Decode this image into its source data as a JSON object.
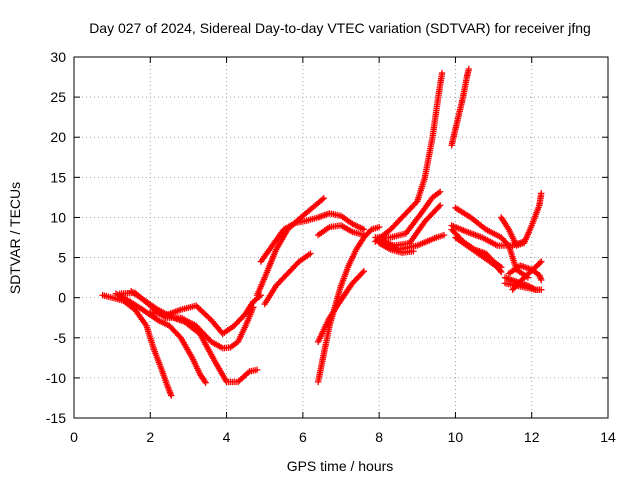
{
  "chart_data": {
    "type": "scatter",
    "title": "Day 027 of 2024, Sidereal Day-to-day VTEC variation (SDTVAR) for receiver jfng",
    "xlabel": "GPS time / hours",
    "ylabel": "SDTVAR / TECUs",
    "xlim": [
      0,
      14
    ],
    "ylim": [
      -15,
      30
    ],
    "x_ticks": [
      "0",
      "2",
      "4",
      "6",
      "8",
      "10",
      "12",
      "14"
    ],
    "y_ticks": [
      "-15",
      "-10",
      "-5",
      "0",
      "5",
      "10",
      "15",
      "20",
      "25",
      "30"
    ],
    "grid": true,
    "marker": "plus",
    "marker_color": "#ff0000",
    "series": [
      {
        "x": [
          0.75,
          1.0,
          1.3,
          1.6,
          1.9,
          2.1,
          2.3,
          2.45,
          2.55
        ],
        "y": [
          0.3,
          0.0,
          -0.4,
          -1.5,
          -3.5,
          -6.5,
          -9.0,
          -11.0,
          -12.2
        ]
      },
      {
        "x": [
          1.1,
          1.4,
          1.8,
          2.2,
          2.5,
          2.8,
          3.1,
          3.3,
          3.45
        ],
        "y": [
          0.5,
          -0.3,
          -1.5,
          -2.8,
          -3.5,
          -5.0,
          -7.5,
          -9.5,
          -10.6
        ]
      },
      {
        "x": [
          1.5,
          1.8,
          2.2,
          2.6,
          2.9,
          3.3,
          3.7,
          4.0,
          4.3,
          4.6,
          4.8
        ],
        "y": [
          0.8,
          -0.2,
          -1.5,
          -2.5,
          -3.0,
          -4.5,
          -8.0,
          -10.5,
          -10.5,
          -9.2,
          -9.0
        ]
      },
      {
        "x": [
          1.2,
          1.6,
          2.0,
          2.4,
          2.8,
          3.2,
          3.6,
          3.9,
          4.1,
          4.3,
          4.5,
          4.7
        ],
        "y": [
          0.5,
          0.6,
          -1.0,
          -2.5,
          -2.5,
          -3.5,
          -5.5,
          -6.3,
          -6.2,
          -5.5,
          -3.5,
          -1.2
        ]
      },
      {
        "x": [
          2.0,
          2.4,
          2.8,
          3.2,
          3.6,
          3.9,
          4.2,
          4.5,
          4.7,
          4.9
        ],
        "y": [
          -1.8,
          -2.2,
          -1.5,
          -1.0,
          -2.8,
          -4.5,
          -3.5,
          -2.0,
          -0.5,
          0.3
        ]
      },
      {
        "x": [
          4.8,
          5.0,
          5.3,
          5.6,
          5.9,
          6.2,
          6.4,
          6.55
        ],
        "y": [
          0.3,
          2.5,
          6.0,
          8.5,
          9.8,
          11.0,
          11.8,
          12.4
        ]
      },
      {
        "x": [
          4.9,
          5.2,
          5.5,
          5.8,
          6.1,
          6.4,
          6.7,
          7.0,
          7.3,
          7.6
        ],
        "y": [
          4.5,
          6.5,
          8.5,
          9.3,
          9.6,
          10.0,
          10.5,
          10.2,
          9.2,
          8.5
        ]
      },
      {
        "x": [
          5.0,
          5.3,
          5.6,
          5.9,
          6.2
        ],
        "y": [
          -0.8,
          1.5,
          3.0,
          4.5,
          5.5
        ]
      },
      {
        "x": [
          6.4,
          6.7,
          7.0,
          7.3,
          7.6
        ],
        "y": [
          7.8,
          8.8,
          9.0,
          8.2,
          7.8
        ]
      },
      {
        "x": [
          6.4,
          6.55,
          6.7,
          6.85,
          7.0,
          7.2,
          7.4,
          7.6,
          7.8,
          8.0
        ],
        "y": [
          -10.5,
          -7.0,
          -3.5,
          -1.0,
          1.5,
          4.0,
          6.0,
          7.5,
          8.5,
          8.8
        ]
      },
      {
        "x": [
          6.4,
          6.7,
          7.0,
          7.3,
          7.6
        ],
        "y": [
          -5.5,
          -2.5,
          -0.3,
          1.8,
          3.3
        ]
      },
      {
        "x": [
          7.9,
          8.3,
          8.7,
          9.0,
          9.2,
          9.4,
          9.55,
          9.65
        ],
        "y": [
          7.0,
          8.5,
          10.5,
          12.0,
          15.0,
          20.0,
          25.0,
          28.0
        ]
      },
      {
        "x": [
          7.9,
          8.3,
          8.7,
          9.1,
          9.4,
          9.6
        ],
        "y": [
          7.5,
          7.5,
          8.0,
          10.5,
          12.5,
          13.2
        ]
      },
      {
        "x": [
          8.0,
          8.4,
          8.8,
          9.2,
          9.6
        ],
        "y": [
          7.0,
          6.5,
          6.8,
          9.5,
          11.5
        ]
      },
      {
        "x": [
          8.0,
          8.5,
          9.0,
          9.5,
          9.7
        ],
        "y": [
          7.5,
          6.0,
          6.5,
          7.5,
          7.8
        ]
      },
      {
        "x": [
          8.0,
          8.3,
          8.6,
          8.9
        ],
        "y": [
          6.8,
          6.0,
          5.6,
          5.8
        ]
      },
      {
        "x": [
          9.9,
          10.0,
          10.1,
          10.2,
          10.3,
          10.35
        ],
        "y": [
          19.0,
          21.0,
          23.0,
          25.0,
          27.5,
          28.5
        ]
      },
      {
        "x": [
          10.0,
          10.4,
          10.8,
          11.2,
          11.4,
          11.6,
          11.9
        ],
        "y": [
          11.2,
          10.0,
          8.5,
          7.5,
          6.5,
          3.5,
          2.5
        ]
      },
      {
        "x": [
          9.9,
          10.3,
          10.7,
          11.1,
          11.5,
          11.8
        ],
        "y": [
          9.0,
          8.2,
          7.5,
          6.5,
          6.5,
          7.0
        ]
      },
      {
        "x": [
          9.9,
          10.2,
          10.5,
          10.8,
          11.0,
          11.2
        ],
        "y": [
          8.5,
          7.0,
          6.0,
          5.5,
          4.5,
          3.8
        ]
      },
      {
        "x": [
          10.0,
          10.3,
          10.6,
          10.9,
          11.1,
          11.2
        ],
        "y": [
          7.5,
          6.5,
          5.5,
          4.5,
          3.8,
          3.2
        ]
      },
      {
        "x": [
          11.2,
          11.4,
          11.6,
          11.8,
          12.0,
          12.2,
          12.25
        ],
        "y": [
          10.0,
          8.5,
          6.5,
          6.8,
          9.0,
          11.5,
          13.0
        ]
      },
      {
        "x": [
          11.3,
          11.6,
          11.9,
          12.1,
          12.25
        ],
        "y": [
          2.5,
          2.0,
          1.5,
          1.0,
          1.0
        ]
      },
      {
        "x": [
          11.4,
          11.7,
          12.0,
          12.2,
          12.25
        ],
        "y": [
          3.0,
          4.0,
          3.5,
          2.8,
          2.2
        ]
      },
      {
        "x": [
          11.3,
          11.6,
          11.9,
          12.1,
          12.25
        ],
        "y": [
          1.8,
          1.5,
          1.2,
          1.0,
          1.0
        ]
      },
      {
        "x": [
          11.5,
          11.8,
          12.1,
          12.25
        ],
        "y": [
          1.0,
          2.5,
          3.8,
          4.5
        ]
      }
    ]
  }
}
